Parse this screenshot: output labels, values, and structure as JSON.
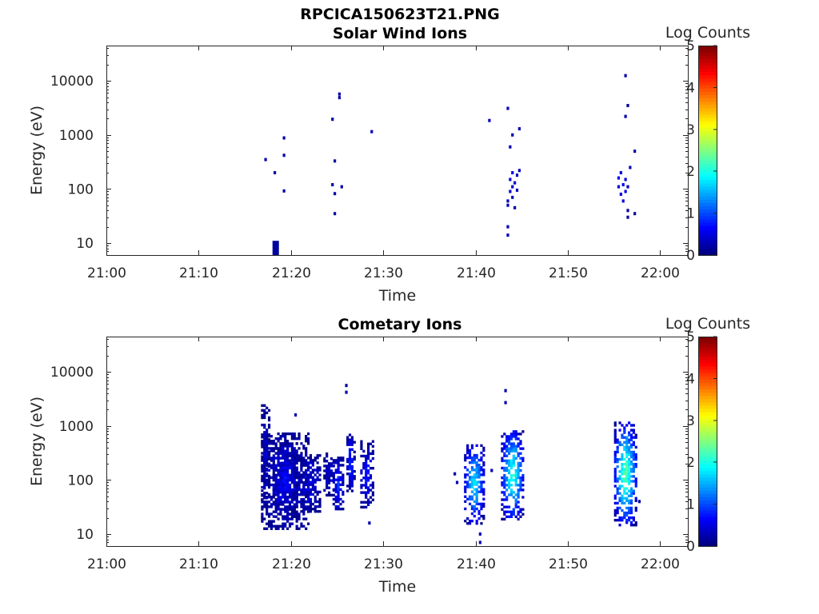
{
  "figure": {
    "title": "RPCICA150623T21.PNG"
  },
  "colors": {
    "colormap": "jet",
    "background": "#ffffff",
    "axis": "#262626"
  },
  "chart_data": [
    {
      "type": "heatmap",
      "title": "Solar Wind Ions",
      "xlabel": "Time",
      "ylabel": "Energy (eV)",
      "xlim": [
        "21:00",
        "22:03"
      ],
      "ylim": [
        6,
        45000
      ],
      "yscale": "log",
      "xticks": [
        "21:00",
        "21:10",
        "21:20",
        "21:30",
        "21:40",
        "21:50",
        "22:00"
      ],
      "yticks": [
        "10",
        "100",
        "1000",
        "10000"
      ],
      "colorbar": {
        "label": "Log Counts",
        "min": 0,
        "max": 5,
        "ticks": [
          "0",
          "1",
          "2",
          "3",
          "4",
          "5"
        ]
      },
      "cells": [
        {
          "t": "21:17:15",
          "e": 350,
          "v": 0.2
        },
        {
          "t": "21:18:15",
          "e": 200,
          "v": 0.2
        },
        {
          "t": "21:19:15",
          "e": 420,
          "v": 0.2
        },
        {
          "t": "21:19:15",
          "e": 880,
          "v": 0.2
        },
        {
          "t": "21:19:15",
          "e": 92,
          "v": 0.2
        },
        {
          "t": "21:18:30",
          "e": 10,
          "v": 0.1
        },
        {
          "t": "21:18:30",
          "e": 8,
          "v": 0.1
        },
        {
          "t": "21:24:30",
          "e": 1950,
          "v": 0.2
        },
        {
          "t": "21:24:45",
          "e": 330,
          "v": 0.2
        },
        {
          "t": "21:24:30",
          "e": 120,
          "v": 0.2
        },
        {
          "t": "21:25:30",
          "e": 110,
          "v": 0.2
        },
        {
          "t": "21:24:45",
          "e": 82,
          "v": 0.2
        },
        {
          "t": "21:24:45",
          "e": 35,
          "v": 0.2
        },
        {
          "t": "21:25:15",
          "e": 5700,
          "v": 0.2
        },
        {
          "t": "21:25:15",
          "e": 4900,
          "v": 0.2
        },
        {
          "t": "21:28:45",
          "e": 1150,
          "v": 0.3
        },
        {
          "t": "21:41:30",
          "e": 1850,
          "v": 0.3
        },
        {
          "t": "21:43:30",
          "e": 3100,
          "v": 0.3
        },
        {
          "t": "21:43:30",
          "e": 60,
          "v": 0.3
        },
        {
          "t": "21:43:30",
          "e": 50,
          "v": 0.3
        },
        {
          "t": "21:43:45",
          "e": 90,
          "v": 0.4
        },
        {
          "t": "21:43:45",
          "e": 150,
          "v": 0.5
        },
        {
          "t": "21:44:00",
          "e": 110,
          "v": 0.4
        },
        {
          "t": "21:44:00",
          "e": 70,
          "v": 0.3
        },
        {
          "t": "21:44:00",
          "e": 200,
          "v": 0.5
        },
        {
          "t": "21:44:15",
          "e": 130,
          "v": 0.4
        },
        {
          "t": "21:44:15",
          "e": 45,
          "v": 0.2
        },
        {
          "t": "21:44:30",
          "e": 180,
          "v": 0.3
        },
        {
          "t": "21:44:30",
          "e": 95,
          "v": 0.3
        },
        {
          "t": "21:44:45",
          "e": 220,
          "v": 0.3
        },
        {
          "t": "21:43:45",
          "e": 600,
          "v": 0.2
        },
        {
          "t": "21:44:00",
          "e": 1000,
          "v": 0.2
        },
        {
          "t": "21:44:45",
          "e": 1300,
          "v": 0.2
        },
        {
          "t": "21:43:30",
          "e": 20,
          "v": 0.2
        },
        {
          "t": "21:43:30",
          "e": 14,
          "v": 0.2
        },
        {
          "t": "21:55:30",
          "e": 110,
          "v": 0.4
        },
        {
          "t": "21:55:30",
          "e": 160,
          "v": 0.6
        },
        {
          "t": "21:55:45",
          "e": 80,
          "v": 0.5
        },
        {
          "t": "21:55:45",
          "e": 200,
          "v": 0.5
        },
        {
          "t": "21:56:00",
          "e": 120,
          "v": 0.6
        },
        {
          "t": "21:56:00",
          "e": 60,
          "v": 0.4
        },
        {
          "t": "21:56:15",
          "e": 90,
          "v": 0.5
        },
        {
          "t": "21:56:15",
          "e": 150,
          "v": 0.4
        },
        {
          "t": "21:56:30",
          "e": 110,
          "v": 0.3
        },
        {
          "t": "21:56:30",
          "e": 40,
          "v": 0.2
        },
        {
          "t": "21:56:45",
          "e": 250,
          "v": 0.3
        },
        {
          "t": "21:57:15",
          "e": 500,
          "v": 0.2
        },
        {
          "t": "21:56:15",
          "e": 2200,
          "v": 0.2
        },
        {
          "t": "21:56:30",
          "e": 3500,
          "v": 0.2
        },
        {
          "t": "21:56:15",
          "e": 12500,
          "v": 0.2
        },
        {
          "t": "21:56:30",
          "e": 30,
          "v": 0.2
        },
        {
          "t": "21:57:15",
          "e": 35,
          "v": 0.2
        }
      ]
    },
    {
      "type": "heatmap",
      "title": "Cometary Ions",
      "xlabel": "Time",
      "ylabel": "Energy (eV)",
      "xlim": [
        "21:00",
        "22:03"
      ],
      "ylim": [
        6,
        45000
      ],
      "yscale": "log",
      "xticks": [
        "21:00",
        "21:10",
        "21:20",
        "21:30",
        "21:40",
        "21:50",
        "22:00"
      ],
      "yticks": [
        "10",
        "100",
        "1000",
        "10000"
      ],
      "colorbar": {
        "label": "Log Counts",
        "min": 0,
        "max": 5,
        "ticks": [
          "0",
          "1",
          "2",
          "3",
          "4",
          "5"
        ]
      },
      "blobs": [
        {
          "t0": "21:16:45",
          "t1": "21:21:45",
          "e0": 12,
          "e1": 700,
          "v": 0.4
        },
        {
          "t0": "21:16:45",
          "t1": "21:17:30",
          "e0": 40,
          "e1": 2300,
          "v": 0.3
        },
        {
          "t0": "21:18:00",
          "t1": "21:20:30",
          "e0": 20,
          "e1": 450,
          "v": 0.5
        },
        {
          "t0": "21:21:00",
          "t1": "21:23:00",
          "e0": 25,
          "e1": 300,
          "v": 0.4
        },
        {
          "t0": "21:23:30",
          "t1": "21:24:30",
          "e0": 50,
          "e1": 300,
          "v": 0.3
        },
        {
          "t0": "21:24:30",
          "t1": "21:25:30",
          "e0": 25,
          "e1": 250,
          "v": 0.7
        },
        {
          "t0": "21:26:00",
          "t1": "21:26:45",
          "e0": 60,
          "e1": 700,
          "v": 0.8
        },
        {
          "t0": "21:27:30",
          "t1": "21:28:45",
          "e0": 30,
          "e1": 500,
          "v": 0.6
        },
        {
          "t0": "21:38:45",
          "t1": "21:40:45",
          "e0": 15,
          "e1": 450,
          "v": 1.5
        },
        {
          "t0": "21:42:45",
          "t1": "21:45:00",
          "e0": 18,
          "e1": 800,
          "v": 1.8
        },
        {
          "t0": "21:55:00",
          "t1": "21:57:15",
          "e0": 14,
          "e1": 1100,
          "v": 2.0
        }
      ],
      "cells": [
        {
          "t": "21:26:00",
          "e": 5600,
          "v": 0.2
        },
        {
          "t": "21:26:00",
          "e": 4200,
          "v": 0.2
        },
        {
          "t": "21:43:15",
          "e": 4500,
          "v": 0.2
        },
        {
          "t": "21:43:15",
          "e": 2700,
          "v": 0.2
        },
        {
          "t": "21:20:30",
          "e": 1600,
          "v": 0.2
        },
        {
          "t": "21:37:45",
          "e": 130,
          "v": 0.2
        },
        {
          "t": "21:38:00",
          "e": 90,
          "v": 0.2
        },
        {
          "t": "21:28:30",
          "e": 16,
          "v": 0.2
        },
        {
          "t": "21:40:30",
          "e": 7,
          "v": 0.3
        },
        {
          "t": "21:40:30",
          "e": 10,
          "v": 0.3
        },
        {
          "t": "21:57:45",
          "e": 40,
          "v": 0.2
        },
        {
          "t": "21:41:45",
          "e": 150,
          "v": 0.2
        }
      ]
    }
  ]
}
